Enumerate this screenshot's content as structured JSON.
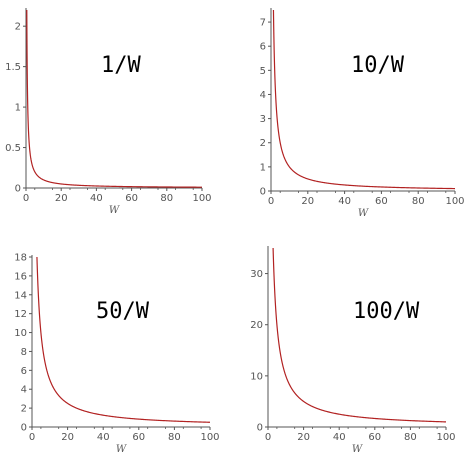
{
  "style": {
    "curve_color": "#b22222",
    "axis_color": "#555555"
  },
  "chart_data": [
    {
      "type": "line",
      "annotation": "1/W",
      "xlabel": "W",
      "xlim": [
        0,
        100
      ],
      "ylim": [
        0,
        2.2
      ],
      "x_ticks": [
        0,
        20,
        40,
        60,
        80,
        100
      ],
      "y_ticks": [
        0,
        0.5,
        1,
        1.5,
        2
      ],
      "function": {
        "form": "k/W",
        "k": 1
      },
      "series": [
        {
          "x": [
            0.46,
            0.5,
            1,
            2,
            3,
            5,
            10,
            20,
            40,
            60,
            80,
            100
          ],
          "y": [
            2.17,
            2,
            1,
            0.5,
            0.333,
            0.2,
            0.1,
            0.05,
            0.025,
            0.0167,
            0.0125,
            0.01
          ]
        }
      ]
    },
    {
      "type": "line",
      "annotation": "10/W",
      "xlabel": "W",
      "xlim": [
        0,
        100
      ],
      "ylim": [
        0,
        7.5
      ],
      "x_ticks": [
        0,
        20,
        40,
        60,
        80,
        100
      ],
      "y_ticks": [
        0,
        1,
        2,
        3,
        4,
        5,
        6,
        7
      ],
      "function": {
        "form": "k/W",
        "k": 10
      },
      "series": [
        {
          "x": [
            1.33,
            2,
            3,
            5,
            10,
            20,
            40,
            60,
            80,
            100
          ],
          "y": [
            7.5,
            5,
            3.33,
            2,
            1,
            0.5,
            0.25,
            0.167,
            0.125,
            0.1
          ]
        }
      ]
    },
    {
      "type": "line",
      "annotation": "50/W",
      "xlabel": "W",
      "xlim": [
        0,
        100
      ],
      "ylim": [
        0,
        18
      ],
      "x_ticks": [
        0,
        20,
        40,
        60,
        80,
        100
      ],
      "y_ticks": [
        0,
        2,
        4,
        6,
        8,
        10,
        12,
        14,
        16,
        18
      ],
      "function": {
        "form": "k/W",
        "k": 50
      },
      "series": [
        {
          "x": [
            2.78,
            3,
            5,
            10,
            20,
            40,
            60,
            80,
            100
          ],
          "y": [
            18,
            16.7,
            10,
            5,
            2.5,
            1.25,
            0.833,
            0.625,
            0.5
          ]
        }
      ]
    },
    {
      "type": "line",
      "annotation": "100/W",
      "xlabel": "W",
      "xlim": [
        0,
        100
      ],
      "ylim": [
        0,
        35
      ],
      "x_ticks": [
        0,
        20,
        40,
        60,
        80,
        100
      ],
      "y_ticks": [
        0,
        10,
        20,
        30
      ],
      "function": {
        "form": "k/W",
        "k": 100
      },
      "series": [
        {
          "x": [
            2.86,
            3,
            5,
            10,
            20,
            40,
            60,
            80,
            100
          ],
          "y": [
            35,
            33.3,
            20,
            10,
            5,
            2.5,
            1.67,
            1.25,
            1
          ]
        }
      ]
    }
  ]
}
